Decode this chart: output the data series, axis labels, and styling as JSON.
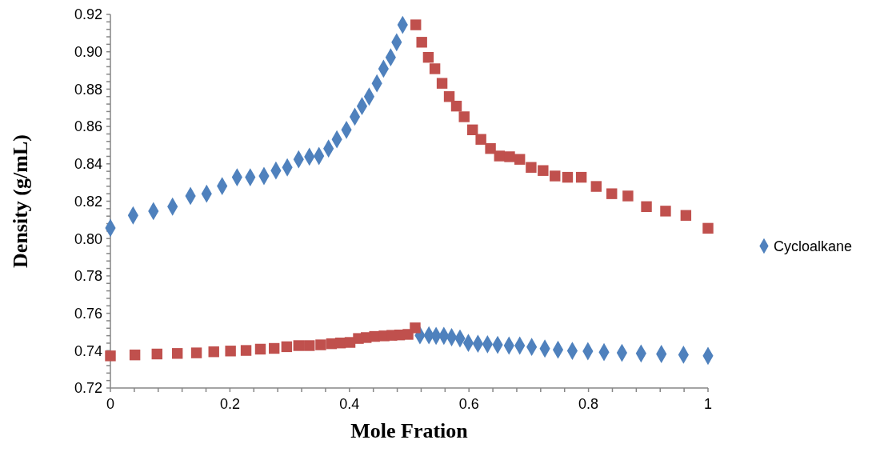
{
  "chart_data": {
    "type": "scatter",
    "xlabel": "Mole Fration",
    "ylabel": "Density (g/mL)",
    "xlim": [
      0,
      1
    ],
    "ylim": [
      0.72,
      0.92
    ],
    "xticks": [
      0,
      {
        "value": 0.04,
        "label": null
      },
      {
        "value": 0.08,
        "label": null
      },
      {
        "value": 0.12,
        "label": null
      },
      {
        "value": 0.16,
        "label": null
      },
      0.2,
      {
        "value": 0.24,
        "label": null
      },
      {
        "value": 0.28,
        "label": null
      },
      {
        "value": 0.32,
        "label": null
      },
      {
        "value": 0.36,
        "label": null
      },
      0.4,
      {
        "value": 0.44,
        "label": null
      },
      {
        "value": 0.48,
        "label": null
      },
      {
        "value": 0.52,
        "label": null
      },
      {
        "value": 0.56,
        "label": null
      },
      0.6,
      {
        "value": 0.64,
        "label": null
      },
      {
        "value": 0.68,
        "label": null
      },
      {
        "value": 0.72,
        "label": null
      },
      {
        "value": 0.76,
        "label": null
      },
      0.8,
      {
        "value": 0.84,
        "label": null
      },
      {
        "value": 0.88,
        "label": null
      },
      {
        "value": 0.92,
        "label": null
      },
      {
        "value": 0.96,
        "label": null
      },
      1
    ],
    "yticks": [
      0.72,
      {
        "value": 0.724,
        "label": null
      },
      {
        "value": 0.728,
        "label": null
      },
      {
        "value": 0.732,
        "label": null
      },
      {
        "value": 0.736,
        "label": null
      },
      0.74,
      {
        "value": 0.744,
        "label": null
      },
      {
        "value": 0.748,
        "label": null
      },
      {
        "value": 0.752,
        "label": null
      },
      {
        "value": 0.756,
        "label": null
      },
      0.76,
      {
        "value": 0.764,
        "label": null
      },
      {
        "value": 0.768,
        "label": null
      },
      {
        "value": 0.772,
        "label": null
      },
      {
        "value": 0.776,
        "label": null
      },
      0.78,
      {
        "value": 0.784,
        "label": null
      },
      {
        "value": 0.788,
        "label": null
      },
      {
        "value": 0.792,
        "label": null
      },
      {
        "value": 0.796,
        "label": null
      },
      {
        "value": 0.8,
        "label": "0.80"
      },
      {
        "value": 0.804,
        "label": null
      },
      {
        "value": 0.808,
        "label": null
      },
      {
        "value": 0.812,
        "label": null
      },
      {
        "value": 0.816,
        "label": null
      },
      0.82,
      {
        "value": 0.824,
        "label": null
      },
      {
        "value": 0.828,
        "label": null
      },
      {
        "value": 0.832,
        "label": null
      },
      {
        "value": 0.836,
        "label": null
      },
      0.84,
      {
        "value": 0.844,
        "label": null
      },
      {
        "value": 0.848,
        "label": null
      },
      {
        "value": 0.852,
        "label": null
      },
      {
        "value": 0.856,
        "label": null
      },
      0.86,
      {
        "value": 0.864,
        "label": null
      },
      {
        "value": 0.868,
        "label": null
      },
      {
        "value": 0.872,
        "label": null
      },
      {
        "value": 0.876,
        "label": null
      },
      0.88,
      {
        "value": 0.884,
        "label": null
      },
      {
        "value": 0.888,
        "label": null
      },
      {
        "value": 0.892,
        "label": null
      },
      {
        "value": 0.896,
        "label": null
      },
      {
        "value": 0.9,
        "label": "0.90"
      },
      {
        "value": 0.904,
        "label": null
      },
      {
        "value": 0.908,
        "label": null
      },
      {
        "value": 0.912,
        "label": null
      },
      {
        "value": 0.916,
        "label": null
      },
      0.92
    ],
    "legend": "right",
    "grid": false,
    "series": [
      {
        "name": "Cycloalkane",
        "color": "#4f81bd",
        "marker": "diamond",
        "x": [
          0,
          0.038,
          0.072,
          0.104,
          0.134,
          0.161,
          0.187,
          0.212,
          0.234,
          0.257,
          0.277,
          0.296,
          0.315,
          0.333,
          0.349,
          0.365,
          0.379,
          0.395,
          0.409,
          0.421,
          0.433,
          0.446,
          0.457,
          0.469,
          0.479,
          0.489,
          0.518,
          0.533,
          0.545,
          0.558,
          0.571,
          0.585,
          0.599,
          0.615,
          0.631,
          0.648,
          0.667,
          0.685,
          0.705,
          0.727,
          0.749,
          0.773,
          0.799,
          0.826,
          0.856,
          0.888,
          0.922,
          0.959,
          1
        ],
        "values": [
          0.8057,
          0.8124,
          0.8147,
          0.8171,
          0.8228,
          0.824,
          0.8281,
          0.8328,
          0.8328,
          0.8335,
          0.8364,
          0.8381,
          0.8424,
          0.8438,
          0.8442,
          0.8482,
          0.8531,
          0.8582,
          0.8652,
          0.8709,
          0.876,
          0.8831,
          0.8909,
          0.897,
          0.9051,
          0.9144,
          0.7482,
          0.7482,
          0.7479,
          0.7479,
          0.7472,
          0.7465,
          0.7441,
          0.7437,
          0.7434,
          0.7431,
          0.7427,
          0.7427,
          0.742,
          0.7411,
          0.7405,
          0.7399,
          0.7397,
          0.7392,
          0.7388,
          0.7385,
          0.7382,
          0.7378,
          0.7372
        ]
      },
      {
        "color": "#c0504d",
        "marker": "square",
        "x": [
          0,
          0.041,
          0.078,
          0.112,
          0.144,
          0.173,
          0.201,
          0.227,
          0.251,
          0.274,
          0.295,
          0.315,
          0.333,
          0.352,
          0.37,
          0.385,
          0.401,
          0.415,
          0.428,
          0.442,
          0.458,
          0.471,
          0.484,
          0.498,
          0.51,
          0.511,
          0.521,
          0.532,
          0.543,
          0.555,
          0.567,
          0.579,
          0.592,
          0.606,
          0.62,
          0.636,
          0.651,
          0.668,
          0.685,
          0.704,
          0.724,
          0.744,
          0.765,
          0.788,
          0.813,
          0.839,
          0.866,
          0.897,
          0.929,
          0.963,
          1
        ],
        "values": [
          0.7372,
          0.7377,
          0.7382,
          0.7385,
          0.7388,
          0.7394,
          0.7398,
          0.7401,
          0.7408,
          0.7412,
          0.7421,
          0.7427,
          0.7427,
          0.7431,
          0.7437,
          0.7441,
          0.7444,
          0.7465,
          0.747,
          0.7476,
          0.7479,
          0.7482,
          0.7484,
          0.7487,
          0.7522,
          0.9144,
          0.9051,
          0.897,
          0.8909,
          0.8831,
          0.876,
          0.8709,
          0.8652,
          0.8582,
          0.8531,
          0.8482,
          0.8442,
          0.8438,
          0.8424,
          0.8381,
          0.8364,
          0.8335,
          0.8328,
          0.8328,
          0.8279,
          0.824,
          0.8228,
          0.8171,
          0.8147,
          0.8124,
          0.8055
        ]
      }
    ]
  }
}
